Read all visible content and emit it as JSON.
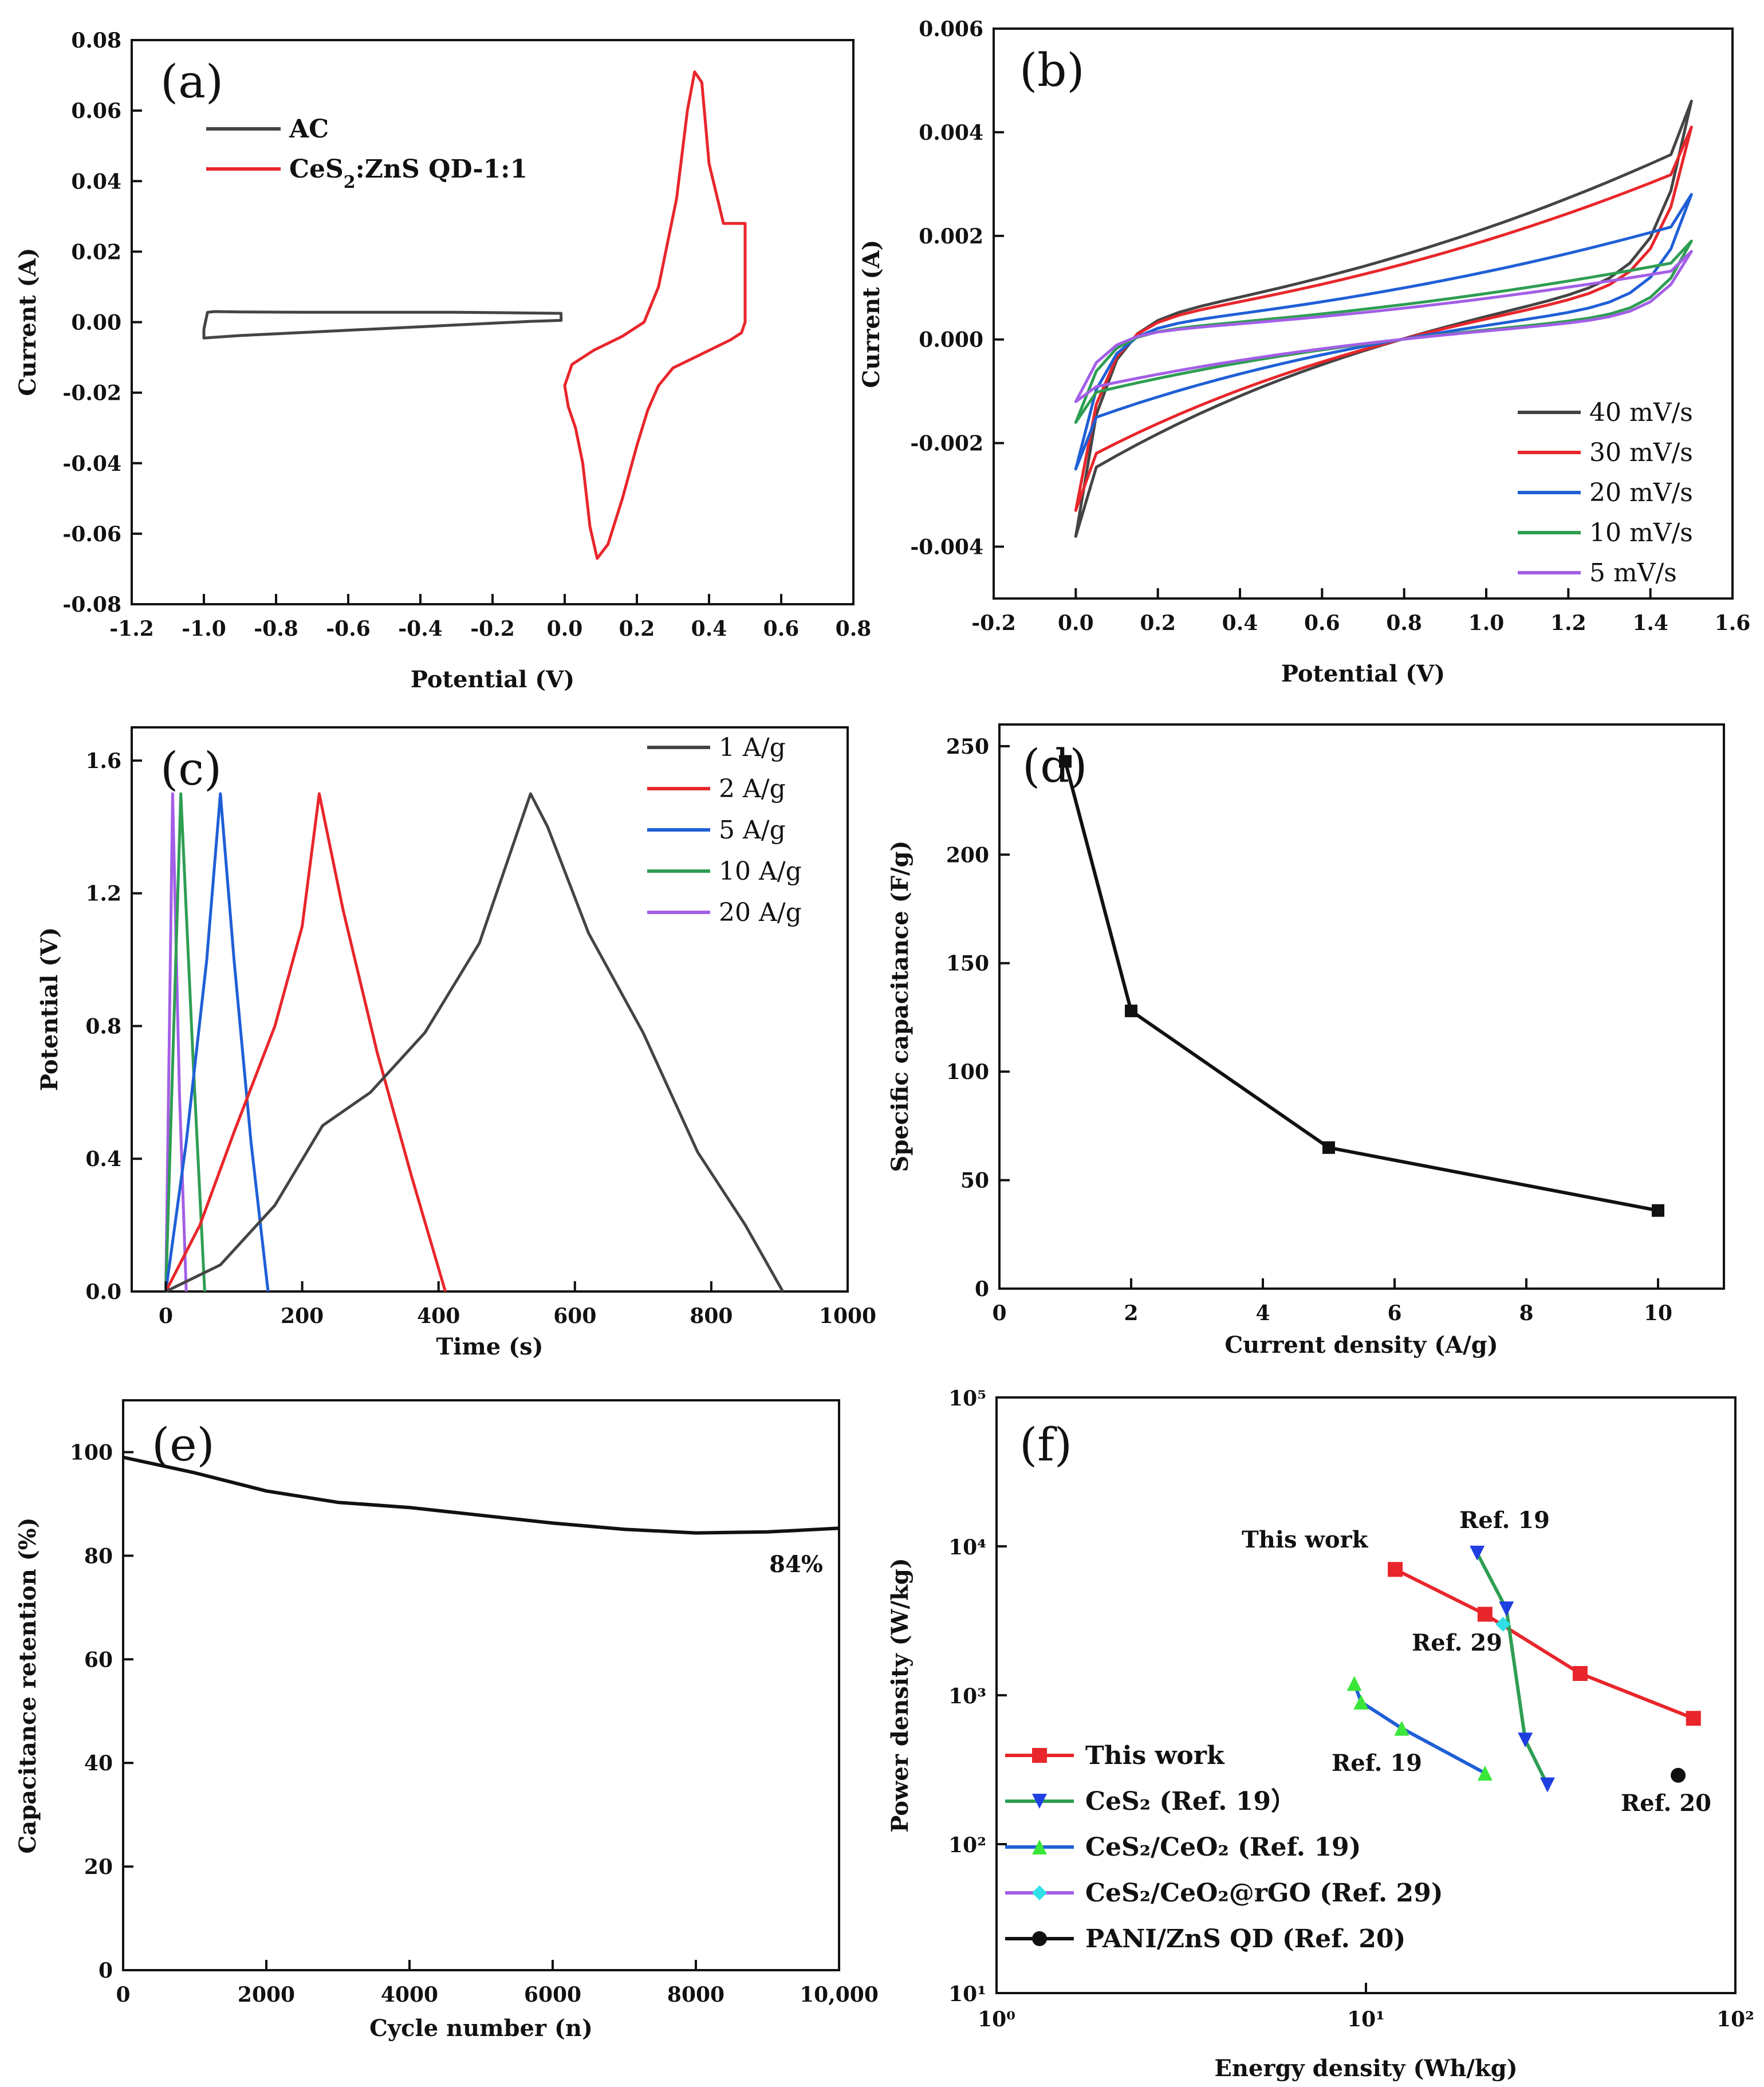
{
  "chart_data": [
    {
      "panel": "(a)",
      "type": "line",
      "xlabel": "Potential (V)",
      "ylabel": "Current (A)",
      "xlim": [
        -1.2,
        0.8
      ],
      "ylim": [
        -0.08,
        0.08
      ],
      "xticks": [
        -1.2,
        -1.0,
        -0.8,
        -0.6,
        -0.4,
        -0.2,
        0.0,
        0.2,
        0.4,
        0.6,
        0.8
      ],
      "xtick_labels": [
        "-1.2",
        "-1.0",
        "-0.8",
        "-0.6",
        "-0.4",
        "-0.2",
        "0.0",
        "0.2",
        "0.4",
        "0.6",
        "0.8"
      ],
      "yticks": [
        -0.08,
        -0.06,
        -0.04,
        -0.02,
        0.0,
        0.02,
        0.04,
        0.06,
        0.08
      ],
      "ytick_labels": [
        "-0.08",
        "-0.06",
        "-0.04",
        "-0.02",
        "0.00",
        "0.02",
        "0.04",
        "0.06",
        "0.08"
      ],
      "legend_position": "top-left",
      "series": [
        {
          "name": "AC",
          "color": "#444444",
          "x": [
            -0.99,
            -0.97,
            -0.9,
            -0.7,
            -0.5,
            -0.3,
            -0.1,
            -0.01,
            -0.01,
            -0.1,
            -0.3,
            -0.5,
            -0.7,
            -0.9,
            -1.0,
            -1.0,
            -0.99
          ],
          "y": [
            0.0028,
            0.003,
            0.0029,
            0.0028,
            0.0028,
            0.0028,
            0.0026,
            0.0025,
            0.0005,
            0.0002,
            -0.0008,
            -0.0018,
            -0.0028,
            -0.0038,
            -0.0045,
            -0.002,
            0.0028
          ]
        },
        {
          "name": "CeS2:ZnS QD-1:1",
          "color": "#e8262b",
          "x": [
            0.0,
            0.02,
            0.08,
            0.16,
            0.22,
            0.26,
            0.28,
            0.31,
            0.34,
            0.36,
            0.38,
            0.4,
            0.44,
            0.5,
            0.5,
            0.49,
            0.46,
            0.42,
            0.36,
            0.3,
            0.26,
            0.23,
            0.2,
            0.16,
            0.12,
            0.09,
            0.07,
            0.05,
            0.03,
            0.01,
            0.0
          ],
          "y": [
            -0.018,
            -0.012,
            -0.008,
            -0.004,
            0.0,
            0.01,
            0.02,
            0.035,
            0.06,
            0.071,
            0.068,
            0.045,
            0.028,
            0.028,
            0.0,
            -0.003,
            -0.005,
            -0.007,
            -0.01,
            -0.013,
            -0.018,
            -0.025,
            -0.035,
            -0.05,
            -0.063,
            -0.067,
            -0.058,
            -0.04,
            -0.03,
            -0.024,
            -0.018
          ]
        }
      ]
    },
    {
      "panel": "(b)",
      "type": "line",
      "xlabel": "Potential (V)",
      "ylabel": "Current (A)",
      "xlim": [
        -0.2,
        1.6
      ],
      "ylim": [
        -0.005,
        0.006
      ],
      "xticks": [
        -0.2,
        0.0,
        0.2,
        0.4,
        0.6,
        0.8,
        1.0,
        1.2,
        1.4,
        1.6
      ],
      "xtick_labels": [
        "-0.2",
        "0.0",
        "0.2",
        "0.4",
        "0.6",
        "0.8",
        "1.0",
        "1.2",
        "1.4",
        "1.6"
      ],
      "yticks": [
        -0.004,
        -0.002,
        0.0,
        0.002,
        0.004,
        0.006
      ],
      "ytick_labels": [
        "-0.004",
        "-0.002",
        "0.000",
        "0.002",
        "0.004",
        "0.006"
      ],
      "legend_position": "bottom-right",
      "series": [
        {
          "name": "40 mV/s",
          "color": "#444444",
          "i_start": -0.0038,
          "i_end": 0.0046
        },
        {
          "name": "30 mV/s",
          "color": "#e8262b",
          "i_start": -0.0033,
          "i_end": 0.0041
        },
        {
          "name": "20 mV/s",
          "color": "#1f5fd6",
          "i_start": -0.0025,
          "i_end": 0.0028
        },
        {
          "name": "10 mV/s",
          "color": "#2e9e52",
          "i_start": -0.0016,
          "i_end": 0.0019
        },
        {
          "name": "5 mV/s",
          "color": "#a35fe6",
          "i_start": -0.0012,
          "i_end": 0.0017
        }
      ]
    },
    {
      "panel": "(c)",
      "type": "line",
      "xlabel": "Time (s)",
      "ylabel": "Potential (V)",
      "xlim": [
        -50,
        1000
      ],
      "ylim": [
        0.0,
        1.7
      ],
      "xticks": [
        0,
        200,
        400,
        600,
        800,
        1000
      ],
      "xtick_labels": [
        "0",
        "200",
        "400",
        "600",
        "800",
        "1000"
      ],
      "yticks": [
        0.0,
        0.4,
        0.8,
        1.2,
        1.6
      ],
      "ytick_labels": [
        "0.0",
        "0.4",
        "0.8",
        "1.2",
        "1.6"
      ],
      "legend_position": "top-right",
      "series": [
        {
          "name": "1 A/g",
          "color": "#444444",
          "x": [
            0,
            80,
            160,
            230,
            300,
            380,
            460,
            535,
            560,
            620,
            700,
            780,
            850,
            905
          ],
          "y": [
            0,
            0.08,
            0.26,
            0.5,
            0.6,
            0.78,
            1.05,
            1.5,
            1.4,
            1.08,
            0.78,
            0.42,
            0.2,
            0.0
          ]
        },
        {
          "name": "2 A/g",
          "color": "#e8262b",
          "x": [
            0,
            50,
            100,
            160,
            200,
            225,
            260,
            310,
            360,
            410
          ],
          "y": [
            0,
            0.2,
            0.48,
            0.8,
            1.1,
            1.5,
            1.15,
            0.72,
            0.35,
            0.0
          ]
        },
        {
          "name": "5 A/g",
          "color": "#1f5fd6",
          "x": [
            0,
            30,
            60,
            80,
            100,
            125,
            150
          ],
          "y": [
            0,
            0.45,
            1.0,
            1.5,
            1.0,
            0.45,
            0.0
          ]
        },
        {
          "name": "10 A/g",
          "color": "#2e9e52",
          "x": [
            0,
            22,
            40,
            57
          ],
          "y": [
            0,
            1.5,
            0.7,
            0.0
          ]
        },
        {
          "name": "20 A/g",
          "color": "#a35fe6",
          "x": [
            0,
            10,
            20,
            30
          ],
          "y": [
            0,
            1.5,
            0.6,
            0.0
          ]
        }
      ]
    },
    {
      "panel": "(d)",
      "type": "line",
      "xlabel": "Current density (A/g)",
      "ylabel": "Specific capacitance (F/g)",
      "xlim": [
        0,
        11
      ],
      "ylim": [
        0,
        260
      ],
      "xticks": [
        0,
        2,
        4,
        6,
        8,
        10
      ],
      "xtick_labels": [
        "0",
        "2",
        "4",
        "6",
        "8",
        "10"
      ],
      "yticks": [
        0,
        50,
        100,
        150,
        200,
        250
      ],
      "ytick_labels": [
        "0",
        "50",
        "100",
        "150",
        "200",
        "250"
      ],
      "series": [
        {
          "name": "Specific capacitance",
          "color": "#111111",
          "x": [
            1,
            2,
            5,
            10
          ],
          "y": [
            243,
            128,
            65,
            36
          ]
        }
      ]
    },
    {
      "panel": "(e)",
      "type": "line",
      "xlabel": "Cycle number (n)",
      "ylabel": "Capacitance retention (%)",
      "xlim": [
        0,
        10000
      ],
      "ylim": [
        0,
        110
      ],
      "xticks": [
        0,
        2000,
        4000,
        6000,
        8000,
        10000
      ],
      "xtick_labels": [
        "0",
        "2000",
        "4000",
        "6000",
        "8000",
        "10,000"
      ],
      "yticks": [
        0,
        20,
        40,
        60,
        80,
        100
      ],
      "ytick_labels": [
        "0",
        "20",
        "40",
        "60",
        "80",
        "100"
      ],
      "annotation": "84%",
      "series": [
        {
          "name": "Capacitance retention",
          "color": "#111111",
          "x": [
            0,
            1000,
            2000,
            3000,
            4000,
            5000,
            6000,
            7000,
            8000,
            9000,
            10000
          ],
          "y": [
            99,
            96,
            92.5,
            90.3,
            89.3,
            87.8,
            86.3,
            85.1,
            84.4,
            84.6,
            85.3
          ]
        }
      ]
    },
    {
      "panel": "(f)",
      "type": "scatter",
      "scale": "log-log",
      "xlabel": "Energy density (Wh/kg)",
      "ylabel": "Power density (W/kg)",
      "xlim": [
        1,
        100
      ],
      "ylim": [
        10,
        100000
      ],
      "xtick_labels": [
        "10⁰",
        "10¹",
        "10²"
      ],
      "ytick_labels": [
        "10¹",
        "10²",
        "10³",
        "10⁴",
        "10⁵"
      ],
      "legend_position": "bottom-left",
      "annotations": [
        "This work",
        "Ref. 19",
        "Ref. 29",
        "Ref. 19",
        "Ref. 20"
      ],
      "series": [
        {
          "name": "This work",
          "color": "#e8262b",
          "marker": "square",
          "x": [
            12,
            21,
            38,
            77
          ],
          "y": [
            7000,
            3500,
            1400,
            700
          ]
        },
        {
          "name": "CeS₂ (Ref. 19）",
          "color": "#2e9e52",
          "marker_color": "#1f3fe0",
          "marker": "triangle-down",
          "x": [
            20,
            24,
            27,
            31
          ],
          "y": [
            9000,
            3800,
            500,
            250
          ]
        },
        {
          "name": "CeS₂/CeO₂ (Ref. 19)",
          "color": "#1f5fd6",
          "marker_color": "#39e639",
          "marker": "triangle-up",
          "x": [
            9.3,
            9.7,
            12.5,
            21
          ],
          "y": [
            1200,
            900,
            600,
            300
          ]
        },
        {
          "name": "CeS₂/CeO₂@rGO (Ref. 29)",
          "color": "#a35fe6",
          "marker_color": "#2fe0e6",
          "marker": "diamond",
          "x": [
            23.5
          ],
          "y": [
            3000
          ]
        },
        {
          "name": "PANI/ZnS QD (Ref. 20)",
          "color": "#111111",
          "marker": "circle",
          "x": [
            70
          ],
          "y": [
            290
          ]
        }
      ]
    }
  ]
}
